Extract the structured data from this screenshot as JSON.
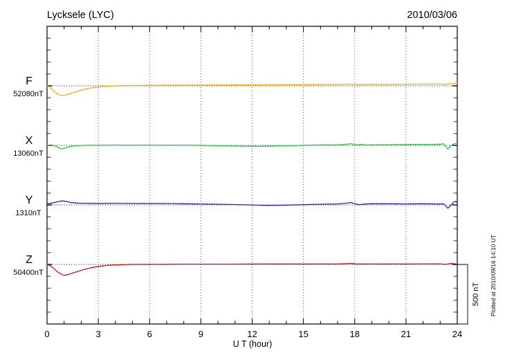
{
  "header": {
    "title": "Lycksele (LYC)",
    "date": "2010/03/06"
  },
  "footer": {
    "xlabel": "U T (hour)",
    "plotted_note": "Plotted at 2010/09/16 14:10 UT"
  },
  "scale_bar": {
    "label": "500 nT",
    "span_nT": 500
  },
  "chart_data": {
    "type": "line",
    "title": "Lycksele (LYC)",
    "date": "2010/03/06",
    "xlabel": "U T (hour)",
    "xlim": [
      0,
      24
    ],
    "x_major_ticks": [
      0,
      3,
      6,
      9,
      12,
      15,
      18,
      21,
      24
    ],
    "x_minor_step_hours": 1,
    "y_minor_tick_nT": 100,
    "channel_spacing_nT": 500,
    "scale_bar_nT": 500,
    "grid": "dotted vertical lines every 3 hours; dotted horizontal baseline for each channel",
    "legend_position": "left margin (channel letter + baseline value)",
    "series": [
      {
        "name": "F",
        "baseline_label": "52080nT",
        "baseline_nT": 52080,
        "color": "#FFAA00",
        "points_hour_offset_nT": [
          [
            0,
            0
          ],
          [
            0.15,
            -10
          ],
          [
            0.3,
            -30
          ],
          [
            0.5,
            -58
          ],
          [
            0.7,
            -74
          ],
          [
            0.9,
            -81
          ],
          [
            1.1,
            -76
          ],
          [
            1.4,
            -62
          ],
          [
            1.7,
            -48
          ],
          [
            2.0,
            -36
          ],
          [
            2.4,
            -22
          ],
          [
            2.8,
            -12
          ],
          [
            3.2,
            -6
          ],
          [
            3.7,
            -2
          ],
          [
            4.2,
            1
          ],
          [
            5,
            3
          ],
          [
            6,
            4
          ],
          [
            7,
            5
          ],
          [
            8,
            6
          ],
          [
            9,
            6
          ],
          [
            10,
            7
          ],
          [
            11,
            8
          ],
          [
            12,
            8
          ],
          [
            13,
            9
          ],
          [
            14,
            10
          ],
          [
            15,
            10
          ],
          [
            16,
            11
          ],
          [
            17,
            12
          ],
          [
            17.9,
            14
          ],
          [
            18.2,
            12
          ],
          [
            19,
            13
          ],
          [
            20,
            13
          ],
          [
            21,
            14
          ],
          [
            22,
            15
          ],
          [
            23,
            15
          ],
          [
            23.3,
            13
          ],
          [
            23.5,
            16
          ],
          [
            23.8,
            20
          ],
          [
            24,
            24
          ]
        ]
      },
      {
        "name": "X",
        "baseline_label": "13060nT",
        "baseline_nT": 13060,
        "color": "#22CC44",
        "points_hour_offset_nT": [
          [
            0,
            2
          ],
          [
            0.3,
            4
          ],
          [
            0.5,
            -6
          ],
          [
            0.8,
            -28
          ],
          [
            1.0,
            -24
          ],
          [
            1.3,
            -12
          ],
          [
            1.6,
            -4
          ],
          [
            2,
            0
          ],
          [
            2.5,
            2
          ],
          [
            3,
            2
          ],
          [
            4,
            3
          ],
          [
            5,
            2
          ],
          [
            6,
            3
          ],
          [
            7,
            2
          ],
          [
            8,
            3
          ],
          [
            9,
            1
          ],
          [
            10,
            -3
          ],
          [
            11,
            -6
          ],
          [
            12,
            -8
          ],
          [
            13,
            -7
          ],
          [
            14,
            -3
          ],
          [
            15,
            1
          ],
          [
            16,
            4
          ],
          [
            17,
            4
          ],
          [
            17.8,
            14
          ],
          [
            18.1,
            4
          ],
          [
            18.4,
            9
          ],
          [
            18.7,
            3
          ],
          [
            19,
            5
          ],
          [
            20,
            6
          ],
          [
            21,
            7
          ],
          [
            21.5,
            9
          ],
          [
            22,
            8
          ],
          [
            22.5,
            9
          ],
          [
            23,
            10
          ],
          [
            23.2,
            14
          ],
          [
            23.45,
            -30
          ],
          [
            23.6,
            -8
          ],
          [
            23.75,
            10
          ],
          [
            23.9,
            16
          ],
          [
            24,
            10
          ]
        ]
      },
      {
        "name": "Y",
        "baseline_label": "1310nT",
        "baseline_nT": 1310,
        "color": "#2222CC",
        "points_hour_offset_nT": [
          [
            0,
            10
          ],
          [
            0.3,
            16
          ],
          [
            0.6,
            26
          ],
          [
            0.9,
            34
          ],
          [
            1.1,
            30
          ],
          [
            1.4,
            20
          ],
          [
            1.7,
            16
          ],
          [
            2,
            14
          ],
          [
            3,
            13
          ],
          [
            4,
            14
          ],
          [
            5,
            12
          ],
          [
            6,
            13
          ],
          [
            7,
            12
          ],
          [
            8,
            10
          ],
          [
            9,
            8
          ],
          [
            10,
            6
          ],
          [
            11,
            3
          ],
          [
            12,
            0
          ],
          [
            12.5,
            -3
          ],
          [
            13,
            -4
          ],
          [
            13.5,
            -3
          ],
          [
            14,
            -2
          ],
          [
            15,
            2
          ],
          [
            16,
            6
          ],
          [
            17,
            8
          ],
          [
            17.8,
            20
          ],
          [
            18.1,
            6
          ],
          [
            18.3,
            2
          ],
          [
            18.6,
            8
          ],
          [
            19,
            10
          ],
          [
            20,
            10
          ],
          [
            21,
            9
          ],
          [
            22,
            10
          ],
          [
            23,
            8
          ],
          [
            23.2,
            10
          ],
          [
            23.45,
            -28
          ],
          [
            23.6,
            -6
          ],
          [
            23.8,
            24
          ],
          [
            23.9,
            30
          ],
          [
            24,
            18
          ]
        ]
      },
      {
        "name": "Z",
        "baseline_label": "50400nT",
        "baseline_nT": 50400,
        "color": "#DD1111",
        "points_hour_offset_nT": [
          [
            0,
            0
          ],
          [
            0.2,
            -12
          ],
          [
            0.4,
            -34
          ],
          [
            0.6,
            -60
          ],
          [
            0.8,
            -80
          ],
          [
            1.0,
            -91
          ],
          [
            1.2,
            -86
          ],
          [
            1.5,
            -72
          ],
          [
            1.8,
            -58
          ],
          [
            2.1,
            -44
          ],
          [
            2.5,
            -30
          ],
          [
            3,
            -16
          ],
          [
            3.5,
            -8
          ],
          [
            4,
            -4
          ],
          [
            4.5,
            -1
          ],
          [
            5,
            1
          ],
          [
            6,
            2
          ],
          [
            7,
            2
          ],
          [
            8,
            3
          ],
          [
            9,
            3
          ],
          [
            10,
            3
          ],
          [
            11,
            3
          ],
          [
            12,
            4
          ],
          [
            13,
            4
          ],
          [
            14,
            4
          ],
          [
            15,
            4
          ],
          [
            16,
            4
          ],
          [
            17,
            4
          ],
          [
            17.85,
            9
          ],
          [
            18.1,
            4
          ],
          [
            19,
            4
          ],
          [
            20,
            4
          ],
          [
            21,
            4
          ],
          [
            22,
            5
          ],
          [
            23,
            5
          ],
          [
            23.3,
            1
          ],
          [
            23.5,
            6
          ],
          [
            23.7,
            9
          ],
          [
            23.9,
            5
          ],
          [
            24,
            4
          ]
        ]
      }
    ]
  }
}
